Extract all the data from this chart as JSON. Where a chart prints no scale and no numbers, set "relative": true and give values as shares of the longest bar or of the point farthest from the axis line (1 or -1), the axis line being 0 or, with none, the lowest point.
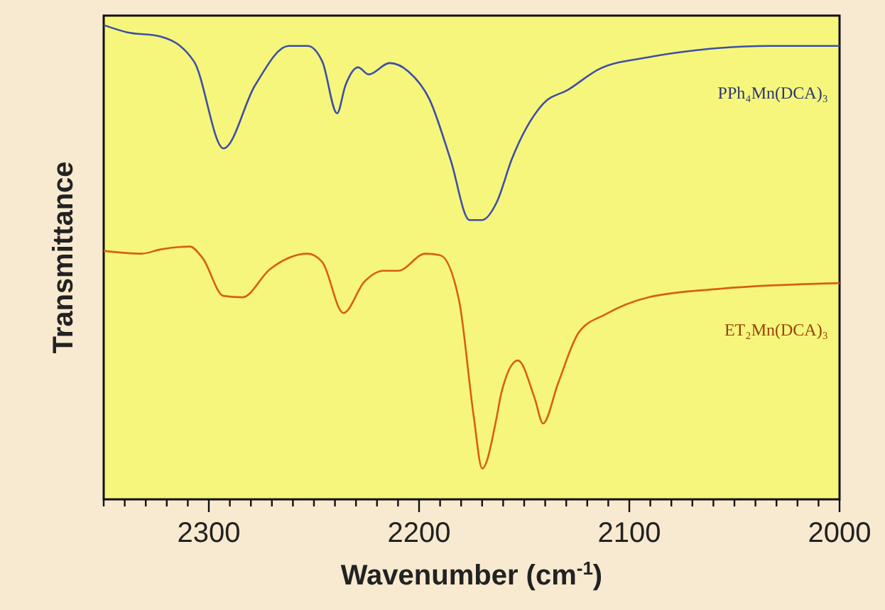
{
  "chart_data": {
    "type": "line",
    "xlabel": "Wavenumber (cm$^{-1}$)",
    "ylabel": "Transmittance",
    "relative": true,
    "xlim": [
      2350,
      2000
    ],
    "xticks": [
      {
        "value": 2350,
        "label": null
      },
      {
        "value": 2340,
        "label": null
      },
      {
        "value": 2330,
        "label": null
      },
      {
        "value": 2320,
        "label": null
      },
      {
        "value": 2310,
        "label": null
      },
      2300,
      {
        "value": 2290,
        "label": null
      },
      {
        "value": 2280,
        "label": null
      },
      {
        "value": 2270,
        "label": null
      },
      {
        "value": 2260,
        "label": null
      },
      {
        "value": 2250,
        "label": null
      },
      {
        "value": 2240,
        "label": null
      },
      {
        "value": 2230,
        "label": null
      },
      {
        "value": 2220,
        "label": null
      },
      {
        "value": 2210,
        "label": null
      },
      2200,
      {
        "value": 2190,
        "label": null
      },
      {
        "value": 2180,
        "label": null
      },
      {
        "value": 2170,
        "label": null
      },
      {
        "value": 2160,
        "label": null
      },
      {
        "value": 2150,
        "label": null
      },
      {
        "value": 2140,
        "label": null
      },
      {
        "value": 2130,
        "label": null
      },
      {
        "value": 2120,
        "label": null
      },
      {
        "value": 2110,
        "label": null
      },
      2100,
      {
        "value": 2090,
        "label": null
      },
      {
        "value": 2080,
        "label": null
      },
      {
        "value": 2070,
        "label": null
      },
      {
        "value": 2060,
        "label": null
      },
      {
        "value": 2050,
        "label": null
      },
      {
        "value": 2040,
        "label": null
      },
      {
        "value": 2030,
        "label": null
      },
      {
        "value": 2020,
        "label": null
      },
      {
        "value": 2010,
        "label": null
      },
      2000
    ],
    "series": [
      {
        "name": "PPh₄Mn(DCA)₃",
        "color": "#3d4fa6",
        "x": [
          2350,
          2339,
          2323,
          2307,
          2293,
          2278,
          2262,
          2253,
          2246,
          2239,
          2235,
          2229,
          2224,
          2214,
          2205,
          2195,
          2185,
          2176,
          2170,
          2163,
          2156,
          2141,
          2129,
          2114,
          2091,
          2068,
          2034,
          2000
        ],
        "values": [
          1.0,
          0.985,
          0.976,
          0.923,
          0.74,
          0.873,
          0.956,
          0.956,
          0.923,
          0.814,
          0.873,
          0.911,
          0.896,
          0.92,
          0.902,
          0.843,
          0.716,
          0.589,
          0.589,
          0.627,
          0.716,
          0.834,
          0.864,
          0.908,
          0.932,
          0.947,
          0.956,
          0.956
        ]
      },
      {
        "name": "ET₂Mn(DCA)₃",
        "color": "#d8600c",
        "x": [
          2350,
          2332,
          2323,
          2309,
          2303,
          2293,
          2284,
          2271,
          2253,
          2246,
          2236,
          2226,
          2217,
          2210,
          2197,
          2190,
          2181,
          2174,
          2170,
          2163,
          2161,
          2153,
          2145,
          2141,
          2134,
          2124,
          2111,
          2091,
          2057,
          2000
        ],
        "values": [
          0.524,
          0.518,
          0.527,
          0.533,
          0.509,
          0.429,
          0.426,
          0.485,
          0.518,
          0.5,
          0.393,
          0.459,
          0.482,
          0.482,
          0.518,
          0.515,
          0.42,
          0.175,
          0.065,
          0.175,
          0.222,
          0.293,
          0.213,
          0.16,
          0.243,
          0.352,
          0.391,
          0.426,
          0.444,
          0.456
        ]
      }
    ]
  }
}
